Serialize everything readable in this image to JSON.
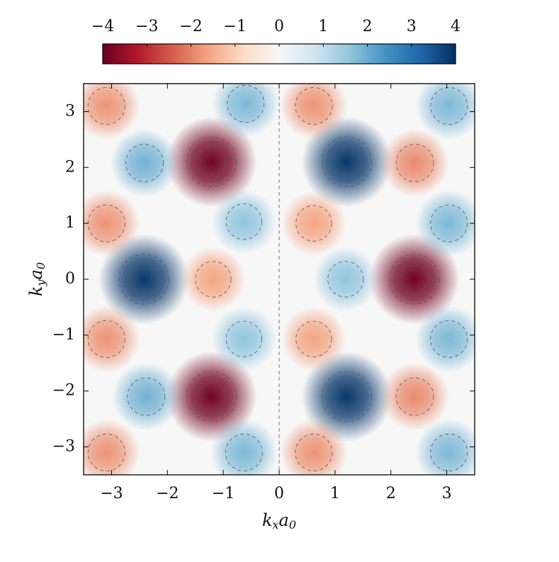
{
  "chart_data": {
    "type": "heatmap",
    "xlabel": [
      "k",
      "x",
      "a",
      "0"
    ],
    "ylabel": [
      "k",
      "y",
      "a",
      "0"
    ],
    "xlim": [
      -3.5,
      3.5
    ],
    "ylim": [
      -3.5,
      3.5
    ],
    "xticks": [
      {
        "value": -3,
        "label": "−3"
      },
      {
        "value": -2,
        "label": "−2"
      },
      {
        "value": -1,
        "label": "−1"
      },
      0,
      1,
      2,
      3
    ],
    "yticks": [
      {
        "value": -3,
        "label": "−3"
      },
      {
        "value": -2,
        "label": "−2"
      },
      {
        "value": -1,
        "label": "−1"
      },
      0,
      1,
      2,
      3
    ],
    "clim": [
      -4,
      4
    ],
    "cticks": [
      {
        "value": -4,
        "label": "−4"
      },
      {
        "value": -3,
        "label": "−3"
      },
      {
        "value": -2,
        "label": "−2"
      },
      {
        "value": -1,
        "label": "−1"
      },
      0,
      1,
      2,
      3,
      4
    ],
    "colormap": [
      "#67001f",
      "#b2182b",
      "#d6604d",
      "#f4a582",
      "#fddbc7",
      "#f7f7f7",
      "#d1e5f0",
      "#92c5de",
      "#4393c3",
      "#2166ac",
      "#053061"
    ],
    "lobes": [
      {
        "x": 2.42,
        "y": 0,
        "value": -3.9
      },
      {
        "x": -1.21,
        "y": 2.1,
        "value": -3.9
      },
      {
        "x": -1.21,
        "y": -2.1,
        "value": -3.9
      },
      {
        "x": -2.42,
        "y": 0,
        "value": 3.9
      },
      {
        "x": 1.21,
        "y": 2.1,
        "value": 3.9
      },
      {
        "x": 1.21,
        "y": -2.1,
        "value": 3.9
      },
      {
        "x": -1.18,
        "y": 0,
        "value": -1.6
      },
      {
        "x": 1.19,
        "y": 0,
        "value": 1.6
      },
      {
        "x": 0.62,
        "y": 1.0,
        "value": -1.6
      },
      {
        "x": -0.63,
        "y": 1.03,
        "value": 1.6
      },
      {
        "x": 0.62,
        "y": -1.07,
        "value": -1.6
      },
      {
        "x": -0.63,
        "y": -1.07,
        "value": 1.6
      },
      {
        "x": -3.09,
        "y": 3.1,
        "value": -1.8
      },
      {
        "x": -0.6,
        "y": 3.14,
        "value": 1.8
      },
      {
        "x": 0.62,
        "y": 3.1,
        "value": -1.8
      },
      {
        "x": 3.04,
        "y": 3.1,
        "value": 1.8
      },
      {
        "x": -2.41,
        "y": 2.08,
        "value": 1.9
      },
      {
        "x": 2.43,
        "y": 2.08,
        "value": -1.9
      },
      {
        "x": -3.09,
        "y": 1.0,
        "value": -1.8
      },
      {
        "x": 3.04,
        "y": 1.0,
        "value": 1.8
      },
      {
        "x": -3.09,
        "y": -1.07,
        "value": -1.8
      },
      {
        "x": 3.04,
        "y": -1.07,
        "value": 1.8
      },
      {
        "x": -2.38,
        "y": -2.1,
        "value": 1.9
      },
      {
        "x": 2.43,
        "y": -2.1,
        "value": -1.9
      },
      {
        "x": -3.09,
        "y": -3.1,
        "value": -1.8
      },
      {
        "x": -0.63,
        "y": -3.1,
        "value": 1.8
      },
      {
        "x": 0.62,
        "y": -3.1,
        "value": -1.8
      },
      {
        "x": 3.04,
        "y": -3.1,
        "value": 1.8
      }
    ]
  }
}
